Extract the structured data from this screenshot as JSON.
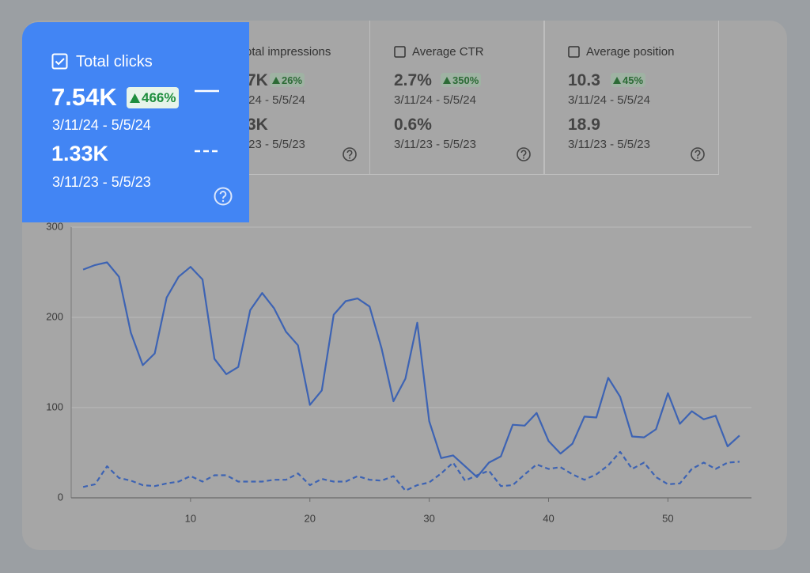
{
  "cards": [
    {
      "title": "Total clicks",
      "current": "7.54K",
      "change": "466%",
      "current_range": "3/11/24 - 5/5/24",
      "previous": "1.33K",
      "previous_range": "3/11/23 - 5/5/23"
    },
    {
      "title": "otal impressions",
      "current": "7K",
      "change": "26%",
      "current_range": "/24 - 5/5/24",
      "previous": "3K",
      "previous_range": "/23 - 5/5/23"
    },
    {
      "title": "Average CTR",
      "current": "2.7%",
      "change": "350%",
      "current_range": "3/11/24 - 5/5/24",
      "previous": "0.6%",
      "previous_range": "3/11/23 - 5/5/23"
    },
    {
      "title": "Average position",
      "current": "10.3",
      "change": "45%",
      "current_range": "3/11/24 - 5/5/24",
      "previous": "18.9",
      "previous_range": "3/11/23 - 5/5/23"
    }
  ],
  "chart_data": {
    "type": "line",
    "x": [
      1,
      2,
      3,
      4,
      5,
      6,
      7,
      8,
      9,
      10,
      11,
      12,
      13,
      14,
      15,
      16,
      17,
      18,
      19,
      20,
      21,
      22,
      23,
      24,
      25,
      26,
      27,
      28,
      29,
      30,
      31,
      32,
      33,
      34,
      35,
      36,
      37,
      38,
      39,
      40,
      41,
      42,
      43,
      44,
      45,
      46,
      47,
      48,
      49,
      50,
      51,
      52,
      53,
      54,
      55,
      56
    ],
    "series": [
      {
        "color": "#3d63b3",
        "dash": false,
        "values": [
          253,
          258,
          261,
          245,
          183,
          147,
          160,
          222,
          245,
          256,
          242,
          154,
          137,
          145,
          208,
          227,
          210,
          184,
          169,
          103,
          119,
          203,
          218,
          221,
          212,
          166,
          107,
          132,
          194,
          85,
          44,
          47,
          35,
          23,
          39,
          46,
          81,
          80,
          94,
          63,
          49,
          60,
          90,
          89,
          133,
          112,
          68,
          67,
          76,
          116,
          82,
          96,
          87,
          91,
          57,
          69
        ]
      },
      {
        "color": "#3d63b3",
        "dash": true,
        "values": [
          12,
          15,
          35,
          22,
          19,
          14,
          13,
          16,
          18,
          24,
          18,
          25,
          25,
          18,
          18,
          18,
          20,
          20,
          27,
          14,
          21,
          18,
          18,
          24,
          20,
          19,
          24,
          8,
          14,
          17,
          27,
          39,
          19,
          25,
          30,
          13,
          14,
          26,
          37,
          32,
          34,
          26,
          20,
          26,
          36,
          51,
          32,
          39,
          23,
          15,
          16,
          32,
          39,
          32,
          39,
          40
        ]
      }
    ],
    "xlim": [
      0,
      57
    ],
    "xticks": [
      10,
      20,
      30,
      40,
      50
    ],
    "ylim": [
      0,
      300
    ],
    "yticks": [
      0,
      100,
      200,
      300
    ],
    "grid": true
  }
}
